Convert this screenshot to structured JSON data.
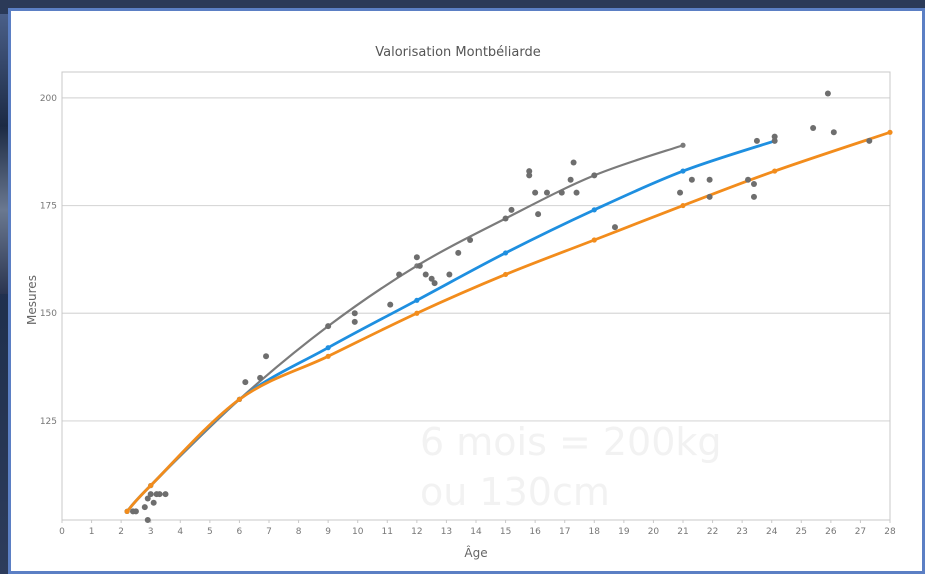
{
  "overlay": {
    "line1": "6 mois = 200kg",
    "line2": "ou 130cm"
  },
  "colors": {
    "grey_series": "#7b7b7b",
    "blue_series": "#1e8fe0",
    "orange_series": "#f28c1c",
    "points": "#6e6e6e",
    "frame_border": "#5b7fc4"
  },
  "chart_data": {
    "type": "scatter",
    "title": "Valorisation Montbéliarde",
    "xlabel": "Âge",
    "ylabel": "Mesures",
    "xlim": [
      0,
      28
    ],
    "ylim": [
      102,
      206
    ],
    "x_ticks": [
      0,
      1,
      2,
      3,
      4,
      5,
      6,
      7,
      8,
      9,
      10,
      11,
      12,
      13,
      14,
      15,
      16,
      17,
      18,
      19,
      20,
      21,
      22,
      23,
      24,
      25,
      26,
      27,
      28
    ],
    "y_ticks": [
      125,
      150,
      175,
      200
    ],
    "grid": true,
    "legend": "none",
    "series": [
      {
        "kind": "line",
        "color": "grey",
        "x": [
          2.2,
          3,
          6,
          9,
          12,
          15,
          18,
          21
        ],
        "y": [
          104,
          110,
          130,
          147,
          161,
          172,
          182,
          189
        ]
      },
      {
        "kind": "line",
        "color": "blue",
        "x": [
          2.2,
          3,
          6,
          9,
          12,
          15,
          18,
          21,
          24.1
        ],
        "y": [
          104,
          110,
          130,
          142,
          153,
          164,
          174,
          183,
          190
        ]
      },
      {
        "kind": "line",
        "color": "orange",
        "x": [
          2.2,
          3,
          6,
          9,
          12,
          15,
          18,
          21,
          24.1,
          28
        ],
        "y": [
          104,
          110,
          130,
          140,
          150,
          159,
          167,
          175,
          183,
          192
        ]
      },
      {
        "kind": "points",
        "x": [
          2.4,
          2.5,
          2.8,
          2.9,
          3.0,
          3.2,
          3.3,
          3.5,
          3.1,
          2.9,
          6.2,
          6.7,
          6.9,
          9.0,
          9.9,
          9.9,
          11.1,
          11.4,
          12.0,
          12.1,
          12.3,
          12.5,
          12.6,
          13.1,
          13.4,
          13.8,
          15.0,
          15.2,
          15.8,
          15.8,
          16.0,
          16.1,
          16.4,
          16.9,
          17.2,
          17.3,
          17.4,
          18.0,
          18.7,
          20.9,
          21.3,
          21.9,
          21.9,
          23.2,
          23.4,
          23.4,
          23.5,
          24.1,
          24.1,
          25.4,
          25.9,
          26.1,
          27.3
        ],
        "y": [
          104,
          104,
          105,
          107,
          108,
          108,
          108,
          108,
          106,
          102,
          134,
          135,
          140,
          147,
          148,
          150,
          152,
          159,
          163,
          161,
          159,
          158,
          157,
          159,
          164,
          167,
          172,
          174,
          182,
          183,
          178,
          173,
          178,
          178,
          181,
          185,
          178,
          182,
          170,
          178,
          181,
          181,
          177,
          181,
          180,
          177,
          190,
          191,
          190,
          193,
          201,
          192,
          190
        ]
      }
    ]
  }
}
